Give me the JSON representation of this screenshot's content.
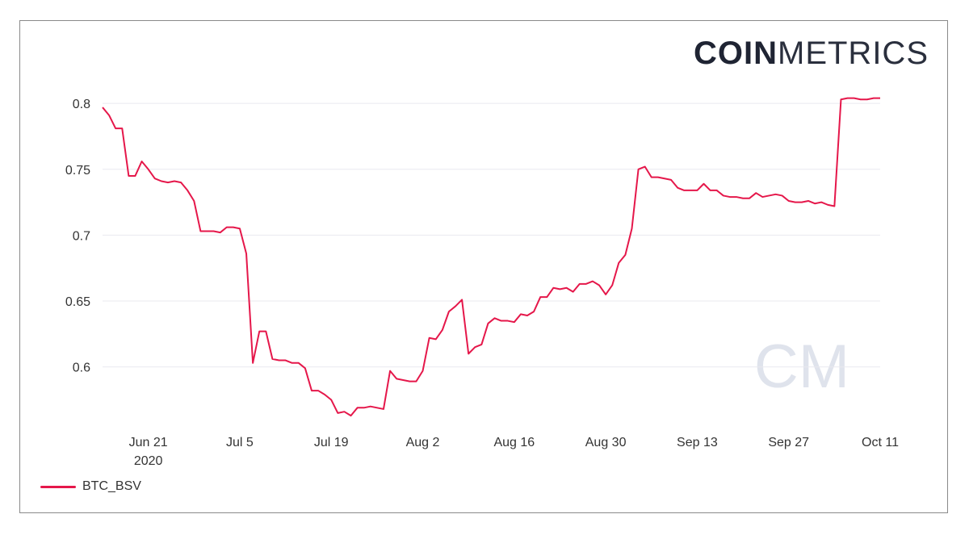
{
  "logo": {
    "part1": "COIN",
    "part2": "METRICS"
  },
  "watermark": "CM",
  "colors": {
    "series": "#e5174a",
    "grid": "#e9e9ef",
    "text": "#333333",
    "watermark": "#dfe3ec"
  },
  "chart_data": {
    "type": "line",
    "x_labels": [
      {
        "date": "2020-06-21",
        "label": "Jun 21",
        "sublabel": "2020"
      },
      {
        "date": "2020-07-05",
        "label": "Jul 5"
      },
      {
        "date": "2020-07-19",
        "label": "Jul 19"
      },
      {
        "date": "2020-08-02",
        "label": "Aug 2"
      },
      {
        "date": "2020-08-16",
        "label": "Aug 16"
      },
      {
        "date": "2020-08-30",
        "label": "Aug 30"
      },
      {
        "date": "2020-09-13",
        "label": "Sep 13"
      },
      {
        "date": "2020-09-27",
        "label": "Sep 27"
      },
      {
        "date": "2020-10-11",
        "label": "Oct 11"
      }
    ],
    "y_ticks": [
      0.6,
      0.65,
      0.7,
      0.75,
      0.8
    ],
    "y_tick_labels": [
      "0.6",
      "0.65",
      "0.7",
      "0.75",
      "0.8"
    ],
    "ylim": [
      0.56,
      0.805
    ],
    "xlim": [
      "2020-06-14",
      "2020-10-11"
    ],
    "grid": "horizontal",
    "legend_position": "bottom-left",
    "series": [
      {
        "name": "BTC_BSV",
        "points": [
          [
            "2020-06-14",
            0.797
          ],
          [
            "2020-06-15",
            0.791
          ],
          [
            "2020-06-16",
            0.781
          ],
          [
            "2020-06-17",
            0.781
          ],
          [
            "2020-06-18",
            0.745
          ],
          [
            "2020-06-19",
            0.745
          ],
          [
            "2020-06-20",
            0.756
          ],
          [
            "2020-06-21",
            0.75
          ],
          [
            "2020-06-22",
            0.743
          ],
          [
            "2020-06-23",
            0.741
          ],
          [
            "2020-06-24",
            0.74
          ],
          [
            "2020-06-25",
            0.741
          ],
          [
            "2020-06-26",
            0.74
          ],
          [
            "2020-06-27",
            0.734
          ],
          [
            "2020-06-28",
            0.726
          ],
          [
            "2020-06-29",
            0.703
          ],
          [
            "2020-06-30",
            0.703
          ],
          [
            "2020-07-01",
            0.703
          ],
          [
            "2020-07-02",
            0.702
          ],
          [
            "2020-07-03",
            0.706
          ],
          [
            "2020-07-04",
            0.706
          ],
          [
            "2020-07-05",
            0.705
          ],
          [
            "2020-07-06",
            0.686
          ],
          [
            "2020-07-07",
            0.603
          ],
          [
            "2020-07-08",
            0.627
          ],
          [
            "2020-07-09",
            0.627
          ],
          [
            "2020-07-10",
            0.606
          ],
          [
            "2020-07-11",
            0.605
          ],
          [
            "2020-07-12",
            0.605
          ],
          [
            "2020-07-13",
            0.603
          ],
          [
            "2020-07-14",
            0.603
          ],
          [
            "2020-07-15",
            0.599
          ],
          [
            "2020-07-16",
            0.582
          ],
          [
            "2020-07-17",
            0.582
          ],
          [
            "2020-07-18",
            0.579
          ],
          [
            "2020-07-19",
            0.575
          ],
          [
            "2020-07-20",
            0.565
          ],
          [
            "2020-07-21",
            0.566
          ],
          [
            "2020-07-22",
            0.563
          ],
          [
            "2020-07-23",
            0.569
          ],
          [
            "2020-07-24",
            0.569
          ],
          [
            "2020-07-25",
            0.57
          ],
          [
            "2020-07-26",
            0.569
          ],
          [
            "2020-07-27",
            0.568
          ],
          [
            "2020-07-28",
            0.597
          ],
          [
            "2020-07-29",
            0.591
          ],
          [
            "2020-07-30",
            0.59
          ],
          [
            "2020-07-31",
            0.589
          ],
          [
            "2020-08-01",
            0.589
          ],
          [
            "2020-08-02",
            0.597
          ],
          [
            "2020-08-03",
            0.622
          ],
          [
            "2020-08-04",
            0.621
          ],
          [
            "2020-08-05",
            0.628
          ],
          [
            "2020-08-06",
            0.642
          ],
          [
            "2020-08-07",
            0.646
          ],
          [
            "2020-08-08",
            0.651
          ],
          [
            "2020-08-09",
            0.61
          ],
          [
            "2020-08-10",
            0.615
          ],
          [
            "2020-08-11",
            0.617
          ],
          [
            "2020-08-12",
            0.633
          ],
          [
            "2020-08-13",
            0.637
          ],
          [
            "2020-08-14",
            0.635
          ],
          [
            "2020-08-15",
            0.635
          ],
          [
            "2020-08-16",
            0.634
          ],
          [
            "2020-08-17",
            0.64
          ],
          [
            "2020-08-18",
            0.639
          ],
          [
            "2020-08-19",
            0.642
          ],
          [
            "2020-08-20",
            0.653
          ],
          [
            "2020-08-21",
            0.653
          ],
          [
            "2020-08-22",
            0.66
          ],
          [
            "2020-08-23",
            0.659
          ],
          [
            "2020-08-24",
            0.66
          ],
          [
            "2020-08-25",
            0.657
          ],
          [
            "2020-08-26",
            0.663
          ],
          [
            "2020-08-27",
            0.663
          ],
          [
            "2020-08-28",
            0.665
          ],
          [
            "2020-08-29",
            0.662
          ],
          [
            "2020-08-30",
            0.655
          ],
          [
            "2020-08-31",
            0.662
          ],
          [
            "2020-09-01",
            0.679
          ],
          [
            "2020-09-02",
            0.685
          ],
          [
            "2020-09-03",
            0.705
          ],
          [
            "2020-09-04",
            0.75
          ],
          [
            "2020-09-05",
            0.752
          ],
          [
            "2020-09-06",
            0.744
          ],
          [
            "2020-09-07",
            0.744
          ],
          [
            "2020-09-08",
            0.743
          ],
          [
            "2020-09-09",
            0.742
          ],
          [
            "2020-09-10",
            0.736
          ],
          [
            "2020-09-11",
            0.734
          ],
          [
            "2020-09-12",
            0.734
          ],
          [
            "2020-09-13",
            0.734
          ],
          [
            "2020-09-14",
            0.739
          ],
          [
            "2020-09-15",
            0.734
          ],
          [
            "2020-09-16",
            0.734
          ],
          [
            "2020-09-17",
            0.73
          ],
          [
            "2020-09-18",
            0.729
          ],
          [
            "2020-09-19",
            0.729
          ],
          [
            "2020-09-20",
            0.728
          ],
          [
            "2020-09-21",
            0.728
          ],
          [
            "2020-09-22",
            0.732
          ],
          [
            "2020-09-23",
            0.729
          ],
          [
            "2020-09-24",
            0.73
          ],
          [
            "2020-09-25",
            0.731
          ],
          [
            "2020-09-26",
            0.73
          ],
          [
            "2020-09-27",
            0.726
          ],
          [
            "2020-09-28",
            0.725
          ],
          [
            "2020-09-29",
            0.725
          ],
          [
            "2020-09-30",
            0.726
          ],
          [
            "2020-10-01",
            0.724
          ],
          [
            "2020-10-02",
            0.725
          ],
          [
            "2020-10-03",
            0.723
          ],
          [
            "2020-10-04",
            0.722
          ],
          [
            "2020-10-05",
            0.803
          ],
          [
            "2020-10-06",
            0.804
          ],
          [
            "2020-10-07",
            0.804
          ],
          [
            "2020-10-08",
            0.803
          ],
          [
            "2020-10-09",
            0.803
          ],
          [
            "2020-10-10",
            0.804
          ],
          [
            "2020-10-11",
            0.804
          ]
        ]
      }
    ]
  }
}
